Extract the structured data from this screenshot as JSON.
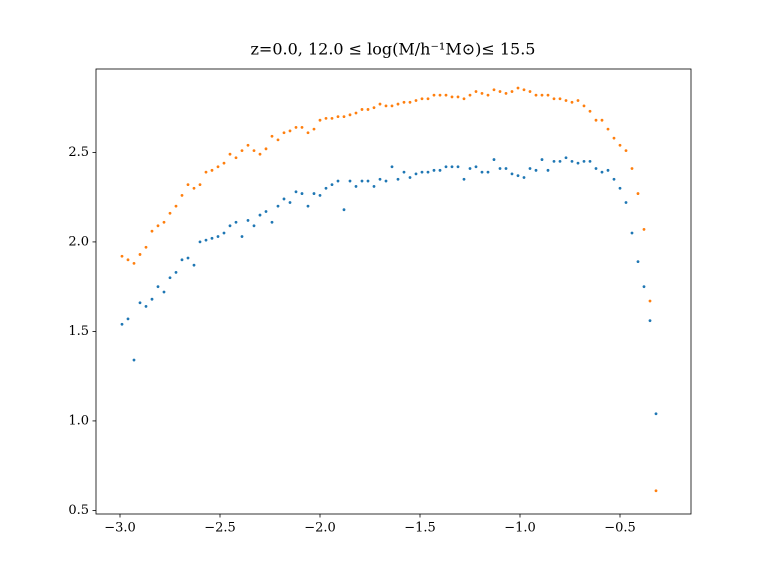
{
  "chart_data": {
    "type": "scatter",
    "title": "z=0.0, 12.0 ≤ log(M/h⁻¹M⊙)≤ 15.5",
    "x": [
      -2.99,
      -2.96,
      -2.93,
      -2.9,
      -2.87,
      -2.84,
      -2.81,
      -2.78,
      -2.75,
      -2.72,
      -2.69,
      -2.66,
      -2.63,
      -2.6,
      -2.57,
      -2.54,
      -2.51,
      -2.48,
      -2.45,
      -2.42,
      -2.39,
      -2.36,
      -2.33,
      -2.3,
      -2.27,
      -2.24,
      -2.21,
      -2.18,
      -2.15,
      -2.12,
      -2.09,
      -2.06,
      -2.03,
      -2.0,
      -1.97,
      -1.94,
      -1.91,
      -1.88,
      -1.85,
      -1.82,
      -1.79,
      -1.76,
      -1.73,
      -1.7,
      -1.67,
      -1.64,
      -1.61,
      -1.58,
      -1.55,
      -1.52,
      -1.49,
      -1.46,
      -1.43,
      -1.4,
      -1.37,
      -1.34,
      -1.31,
      -1.28,
      -1.25,
      -1.22,
      -1.19,
      -1.16,
      -1.13,
      -1.1,
      -1.07,
      -1.04,
      -1.01,
      -0.98,
      -0.95,
      -0.92,
      -0.89,
      -0.86,
      -0.83,
      -0.8,
      -0.77,
      -0.74,
      -0.71,
      -0.68,
      -0.65,
      -0.62,
      -0.59,
      -0.56,
      -0.53,
      -0.5,
      -0.47,
      -0.44,
      -0.41,
      -0.38,
      -0.35,
      -0.32
    ],
    "series": [
      {
        "color": "#1f77b4",
        "values": [
          1.54,
          1.57,
          1.34,
          1.66,
          1.64,
          1.68,
          1.75,
          1.72,
          1.8,
          1.83,
          1.9,
          1.91,
          1.87,
          2.0,
          2.01,
          2.02,
          2.03,
          2.05,
          2.09,
          2.11,
          2.03,
          2.12,
          2.09,
          2.15,
          2.17,
          2.11,
          2.2,
          2.24,
          2.22,
          2.28,
          2.27,
          2.2,
          2.27,
          2.26,
          2.3,
          2.32,
          2.34,
          2.18,
          2.34,
          2.31,
          2.34,
          2.34,
          2.31,
          2.35,
          2.34,
          2.42,
          2.35,
          2.39,
          2.36,
          2.38,
          2.39,
          2.39,
          2.4,
          2.4,
          2.42,
          2.42,
          2.42,
          2.35,
          2.41,
          2.42,
          2.39,
          2.39,
          2.46,
          2.41,
          2.41,
          2.38,
          2.37,
          2.36,
          2.41,
          2.4,
          2.46,
          2.4,
          2.45,
          2.45,
          2.47,
          2.45,
          2.44,
          2.45,
          2.45,
          2.41,
          2.39,
          2.4,
          2.35,
          2.3,
          2.22,
          2.05,
          1.89,
          1.75,
          1.56,
          1.04
        ]
      },
      {
        "color": "#ff7f0e",
        "values": [
          1.92,
          1.9,
          1.88,
          1.93,
          1.97,
          2.06,
          2.09,
          2.11,
          2.16,
          2.2,
          2.26,
          2.32,
          2.3,
          2.32,
          2.39,
          2.4,
          2.42,
          2.44,
          2.49,
          2.47,
          2.51,
          2.54,
          2.51,
          2.49,
          2.52,
          2.59,
          2.57,
          2.61,
          2.62,
          2.64,
          2.64,
          2.61,
          2.63,
          2.68,
          2.69,
          2.69,
          2.7,
          2.7,
          2.71,
          2.72,
          2.74,
          2.74,
          2.75,
          2.77,
          2.76,
          2.76,
          2.77,
          2.78,
          2.78,
          2.79,
          2.8,
          2.8,
          2.82,
          2.82,
          2.82,
          2.81,
          2.81,
          2.8,
          2.82,
          2.84,
          2.83,
          2.82,
          2.85,
          2.84,
          2.83,
          2.84,
          2.86,
          2.85,
          2.84,
          2.82,
          2.82,
          2.82,
          2.8,
          2.8,
          2.79,
          2.78,
          2.79,
          2.76,
          2.73,
          2.68,
          2.68,
          2.63,
          2.58,
          2.54,
          2.51,
          2.41,
          2.27,
          2.07,
          1.67,
          0.61
        ]
      }
    ],
    "xlim": [
      -3.12,
      -0.145
    ],
    "ylim": [
      0.48,
      2.966
    ],
    "xticks": [
      {
        "value": -3,
        "label": "−3.0"
      },
      {
        "value": -2.5,
        "label": "−2.5"
      },
      {
        "value": -2,
        "label": "−2.0"
      },
      {
        "value": -1.5,
        "label": "−1.5"
      },
      {
        "value": -1,
        "label": "−1.0"
      },
      {
        "value": -0.5,
        "label": "−0.5"
      }
    ],
    "yticks": [
      0.5,
      {
        "value": 1,
        "label": "1.0"
      },
      1.5,
      {
        "value": 2,
        "label": "2.0"
      },
      2.5
    ]
  }
}
